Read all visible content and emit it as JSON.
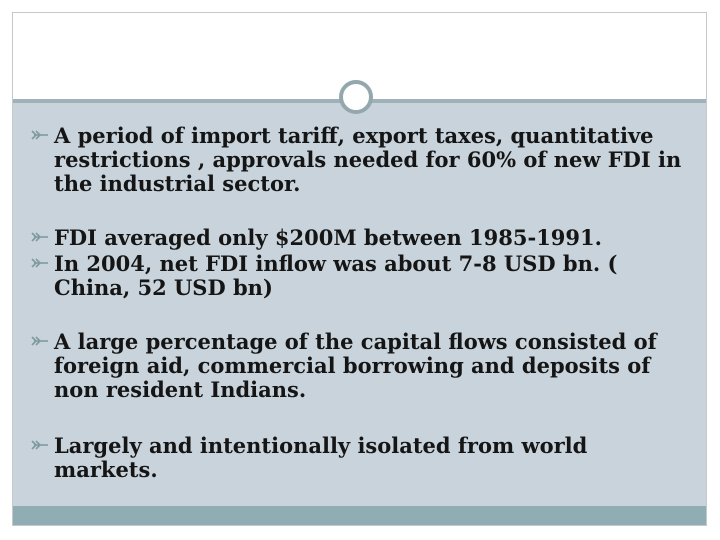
{
  "slide": {
    "bullets": [
      "A period of import tariff, export taxes, quantitative restrictions , approvals needed for 60% of new FDI in the industrial sector.",
      "FDI averaged only $200M between 1985-1991.",
      "In 2004, net FDI inflow was about 7-8 USD bn. ( China, 52 USD bn)",
      "A large percentage of the capital flows consisted of foreign aid, commercial borrowing and deposits of non resident Indians.",
      "Largely and intentionally isolated from world markets."
    ]
  },
  "colors": {
    "content_background": "#c8d3db",
    "footer_bar": "#8fadb2",
    "bullet_mark": "#7f9aa1",
    "text": "#151515"
  },
  "icons": {
    "bullet": "feather-arrow-bullet-icon",
    "ornament": "ring-ornament-icon"
  }
}
